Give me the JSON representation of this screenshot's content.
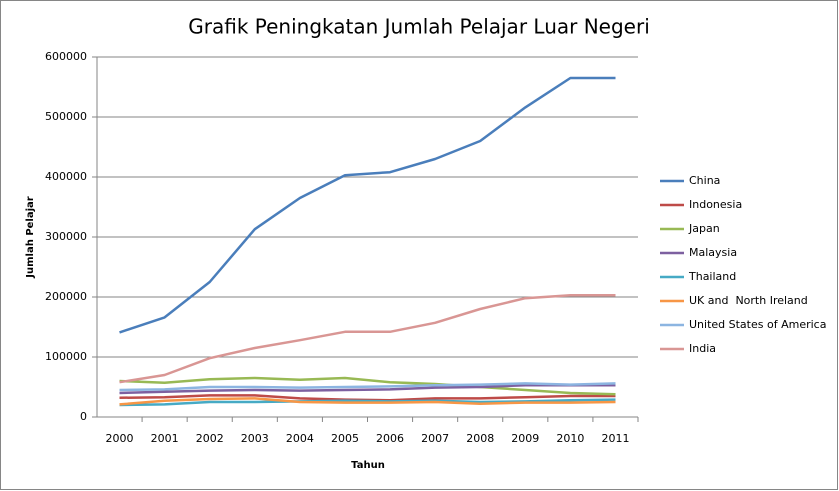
{
  "chart_data": {
    "type": "line",
    "title": "Grafik Peningkatan Jumlah Pelajar Luar Negeri",
    "x_label": "Tahun",
    "y_label": "Jumlah Pelajar",
    "categories": [
      "2000",
      "2001",
      "2002",
      "2003",
      "2004",
      "2005",
      "2006",
      "2007",
      "2008",
      "2009",
      "2010",
      "2011"
    ],
    "ylim": [
      0,
      600000
    ],
    "yticks": [
      0,
      100000,
      200000,
      300000,
      400000,
      500000,
      600000
    ],
    "grid": true,
    "legend": "right",
    "series": [
      {
        "name": "China",
        "color": "#4a7ebb",
        "values": [
          141000,
          166000,
          225000,
          313000,
          365000,
          403000,
          408000,
          430000,
          460000,
          516000,
          565000,
          565000
        ]
      },
      {
        "name": "Indonesia",
        "color": "#be4b48",
        "values": [
          32000,
          33000,
          36000,
          36000,
          31000,
          29000,
          28000,
          31000,
          31000,
          33000,
          35000,
          35000
        ]
      },
      {
        "name": "Japan",
        "color": "#98b954",
        "values": [
          60000,
          57000,
          63000,
          65000,
          62000,
          65000,
          58000,
          55000,
          50000,
          45000,
          40000,
          38000
        ]
      },
      {
        "name": "Malaysia",
        "color": "#7d60a0",
        "values": [
          40000,
          42000,
          44000,
          45000,
          44000,
          45000,
          46000,
          49000,
          50000,
          53000,
          53000,
          53000
        ]
      },
      {
        "name": "Thailand",
        "color": "#46aac5",
        "values": [
          20000,
          21000,
          25000,
          25000,
          26000,
          27000,
          26000,
          27000,
          25000,
          26000,
          28000,
          29000
        ]
      },
      {
        "name": "UK and  North Ireland",
        "color": "#f79646",
        "values": [
          21000,
          27000,
          30000,
          31000,
          25000,
          24000,
          24000,
          25000,
          22000,
          24000,
          24000,
          25000
        ]
      },
      {
        "name": "United States of America",
        "color": "#8cb5e1",
        "values": [
          45000,
          46000,
          50000,
          50000,
          49000,
          50000,
          51000,
          53000,
          54000,
          56000,
          54000,
          56000
        ]
      },
      {
        "name": "India",
        "color": "#d99694",
        "values": [
          58000,
          70000,
          98000,
          115000,
          128000,
          142000,
          142000,
          157000,
          180000,
          198000,
          203000,
          203000
        ]
      }
    ]
  }
}
